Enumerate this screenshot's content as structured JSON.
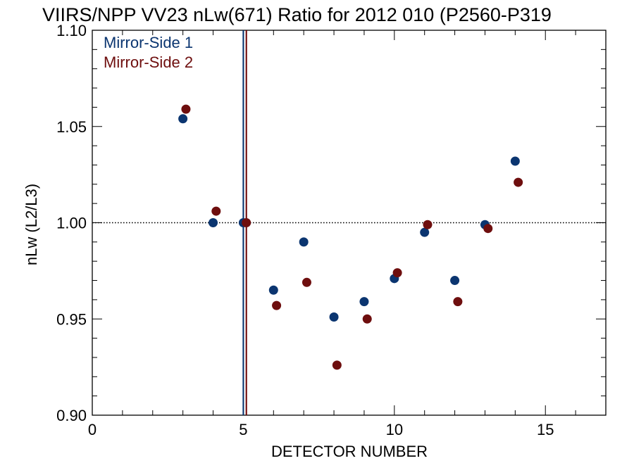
{
  "chart_data": {
    "type": "scatter",
    "title": "VIIRS/NPP VV23 nLw(671) Ratio for 2012 010 (P2560-P319",
    "xlabel": "DETECTOR NUMBER",
    "ylabel": "nLw (L2/L3)",
    "xlim": [
      0,
      17
    ],
    "ylim": [
      0.9,
      1.1
    ],
    "x_ticks": [
      0,
      5,
      10,
      15
    ],
    "x_tick_labels": [
      "0",
      "5",
      "10",
      "15"
    ],
    "y_ticks": [
      0.9,
      0.95,
      1.0,
      1.05,
      1.1
    ],
    "y_tick_labels": [
      "0.90",
      "0.95",
      "1.00",
      "1.05",
      "1.10"
    ],
    "reference_line": 1.0,
    "vertical_lines": [
      {
        "x": 5.0,
        "color": "#002f6c"
      },
      {
        "x": 5.1,
        "color": "#6b0000"
      }
    ],
    "legend_position": "top-left",
    "grid": false,
    "series": [
      {
        "name": "Mirror-Side 1",
        "color": "#0b3570",
        "x": [
          3,
          4,
          5,
          6,
          7,
          8,
          9,
          10,
          11,
          12,
          13,
          14
        ],
        "y": [
          1.054,
          1.0,
          1.0,
          0.965,
          0.99,
          0.951,
          0.959,
          0.971,
          0.995,
          0.97,
          0.999,
          1.032
        ]
      },
      {
        "name": "Mirror-Side 2",
        "color": "#6e0e0e",
        "x": [
          3.1,
          4.1,
          5.1,
          6.1,
          7.1,
          8.1,
          9.1,
          10.1,
          11.1,
          12.1,
          13.1,
          14.1
        ],
        "y": [
          1.059,
          1.006,
          1.0,
          0.957,
          0.969,
          0.926,
          0.95,
          0.974,
          0.999,
          0.959,
          0.997,
          1.021
        ]
      }
    ]
  }
}
